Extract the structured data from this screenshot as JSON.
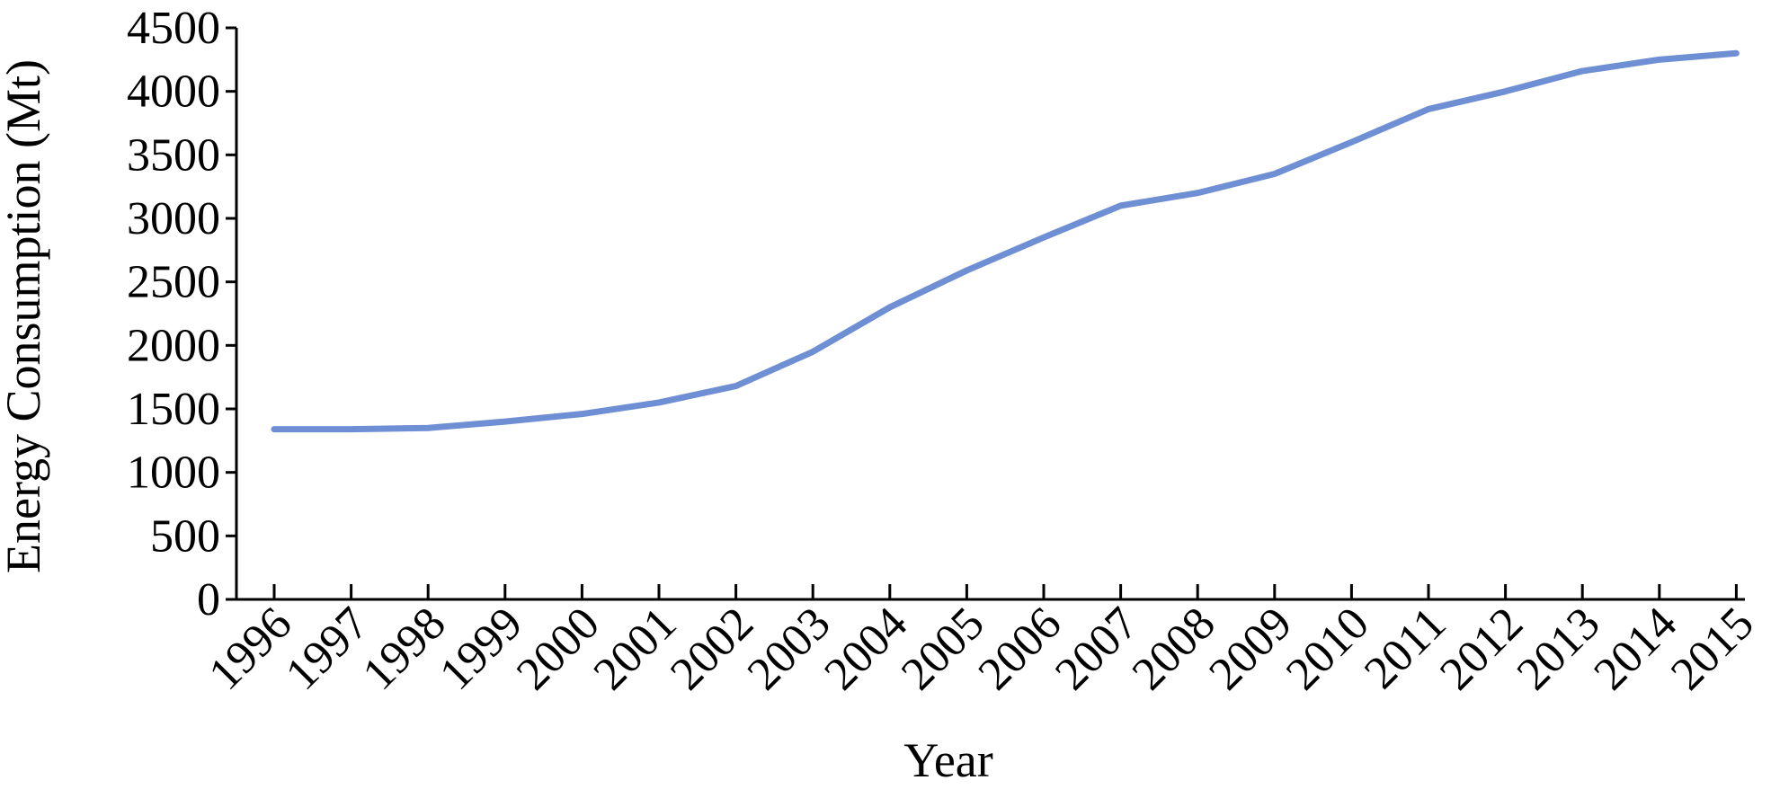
{
  "chart_data": {
    "type": "line",
    "x_label": "Year",
    "y_label": "Energy Consumption (Mt)",
    "categories": [
      "1996",
      "1997",
      "1998",
      "1999",
      "2000",
      "2001",
      "2002",
      "2003",
      "2004",
      "2005",
      "2006",
      "2007",
      "2008",
      "2009",
      "2010",
      "2011",
      "2012",
      "2013",
      "2014",
      "2015"
    ],
    "values": [
      1340,
      1340,
      1350,
      1400,
      1460,
      1550,
      1680,
      1950,
      2300,
      2590,
      2850,
      3100,
      3200,
      3350,
      3600,
      3860,
      4000,
      4160,
      4250,
      4300
    ],
    "color": "#6f8fd4",
    "ylim": [
      0,
      4500
    ],
    "yticks": [
      0,
      500,
      1000,
      1500,
      2000,
      2500,
      3000,
      3500,
      4000,
      4500
    ],
    "grid": false
  }
}
